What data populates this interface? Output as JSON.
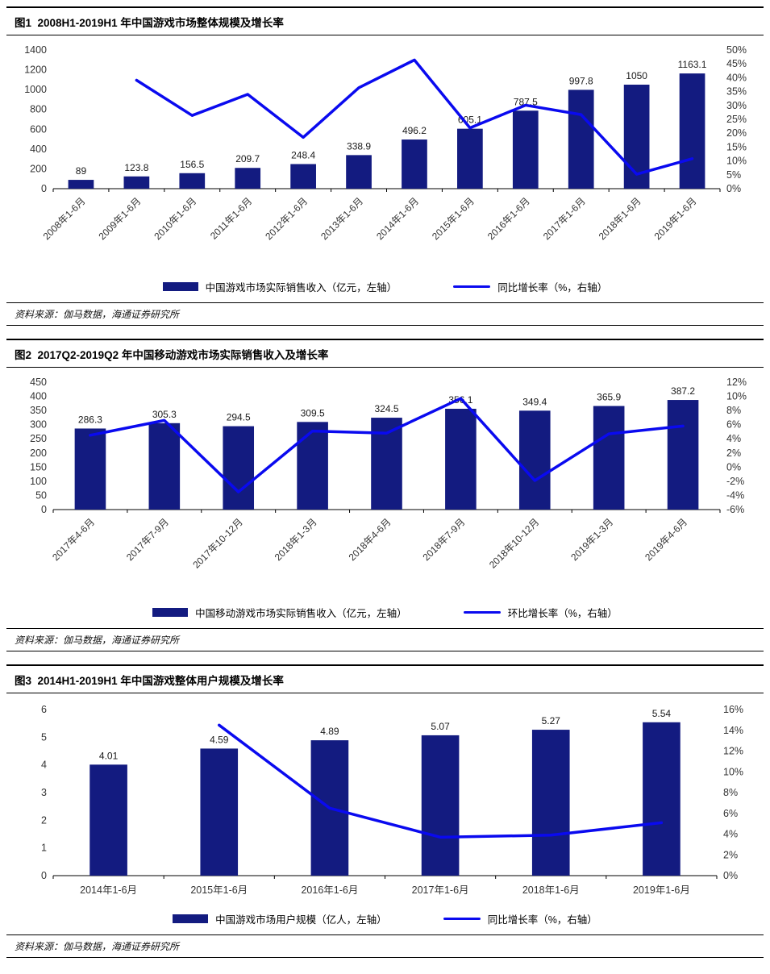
{
  "colors": {
    "bar": "#131B80",
    "line": "#0A0AEF",
    "axis_text": "#333333",
    "value_text": "#1a1a1a",
    "axis_line": "#000000"
  },
  "chart_data": [
    {
      "type": "bar+line",
      "title": "图1  2008H1-2019H1 年中国游戏市场整体规模及增长率",
      "categories": [
        "2008年1-6月",
        "2009年1-6月",
        "2010年1-6月",
        "2011年1-6月",
        "2012年1-6月",
        "2013年1-6月",
        "2014年1-6月",
        "2015年1-6月",
        "2016年1-6月",
        "2017年1-6月",
        "2018年1-6月",
        "2019年1-6月"
      ],
      "series": [
        {
          "name": "中国游戏市场实际销售收入（亿元，左轴）",
          "type": "bar",
          "axis": "left",
          "values": [
            89,
            123.8,
            156.5,
            209.7,
            248.4,
            338.9,
            496.2,
            605.1,
            787.5,
            997.8,
            1050,
            1163.1
          ]
        },
        {
          "name": "同比增长率（%，右轴）",
          "type": "line",
          "axis": "right",
          "values": [
            null,
            39.1,
            26.4,
            34,
            18.5,
            36.4,
            46.4,
            21.9,
            30.1,
            26.7,
            5.2,
            10.8
          ]
        }
      ],
      "left_axis": {
        "min": 0,
        "max": 1400,
        "step": 200,
        "suffix": ""
      },
      "right_axis": {
        "min": 0,
        "max": 50,
        "step": 5,
        "suffix": "%"
      },
      "rotate_x_labels": true,
      "grid": false,
      "legend_position": "bottom",
      "source": "资料来源：伽马数据，海通证券研究所"
    },
    {
      "type": "bar+line",
      "title": "图2  2017Q2-2019Q2 年中国移动游戏市场实际销售收入及增长率",
      "categories": [
        "2017年4-6月",
        "2017年7-9月",
        "2017年10-12月",
        "2018年1-3月",
        "2018年4-6月",
        "2018年7-9月",
        "2018年10-12月",
        "2019年1-3月",
        "2019年4-6月"
      ],
      "series": [
        {
          "name": "中国移动游戏市场实际销售收入（亿元，左轴）",
          "type": "bar",
          "axis": "left",
          "values": [
            286.3,
            305.3,
            294.5,
            309.5,
            324.5,
            356.1,
            349.4,
            365.9,
            387.2
          ]
        },
        {
          "name": "环比增长率（%，右轴）",
          "type": "line",
          "axis": "right",
          "values": [
            4.5,
            6.6,
            -3.5,
            5.1,
            4.8,
            9.7,
            -1.9,
            4.7,
            5.8
          ]
        }
      ],
      "left_axis": {
        "min": 0,
        "max": 450,
        "step": 50,
        "suffix": ""
      },
      "right_axis": {
        "min": -6,
        "max": 12,
        "step": 2,
        "suffix": "%"
      },
      "rotate_x_labels": true,
      "grid": false,
      "legend_position": "bottom",
      "source": "资料来源：伽马数据，海通证券研究所"
    },
    {
      "type": "bar+line",
      "title": "图3  2014H1-2019H1 年中国游戏整体用户规模及增长率",
      "categories": [
        "2014年1-6月",
        "2015年1-6月",
        "2016年1-6月",
        "2017年1-6月",
        "2018年1-6月",
        "2019年1-6月"
      ],
      "series": [
        {
          "name": "中国游戏市场用户规模（亿人，左轴）",
          "type": "bar",
          "axis": "left",
          "values": [
            4.01,
            4.59,
            4.89,
            5.07,
            5.27,
            5.54
          ]
        },
        {
          "name": "同比增长率（%，右轴）",
          "type": "line",
          "axis": "right",
          "values": [
            null,
            14.5,
            6.5,
            3.7,
            3.9,
            5.1
          ]
        }
      ],
      "left_axis": {
        "min": 0,
        "max": 6,
        "step": 1,
        "suffix": ""
      },
      "right_axis": {
        "min": 0,
        "max": 16,
        "step": 2,
        "suffix": "%"
      },
      "rotate_x_labels": false,
      "grid": false,
      "legend_position": "bottom",
      "source": "资料来源：伽马数据，海通证券研究所"
    }
  ]
}
